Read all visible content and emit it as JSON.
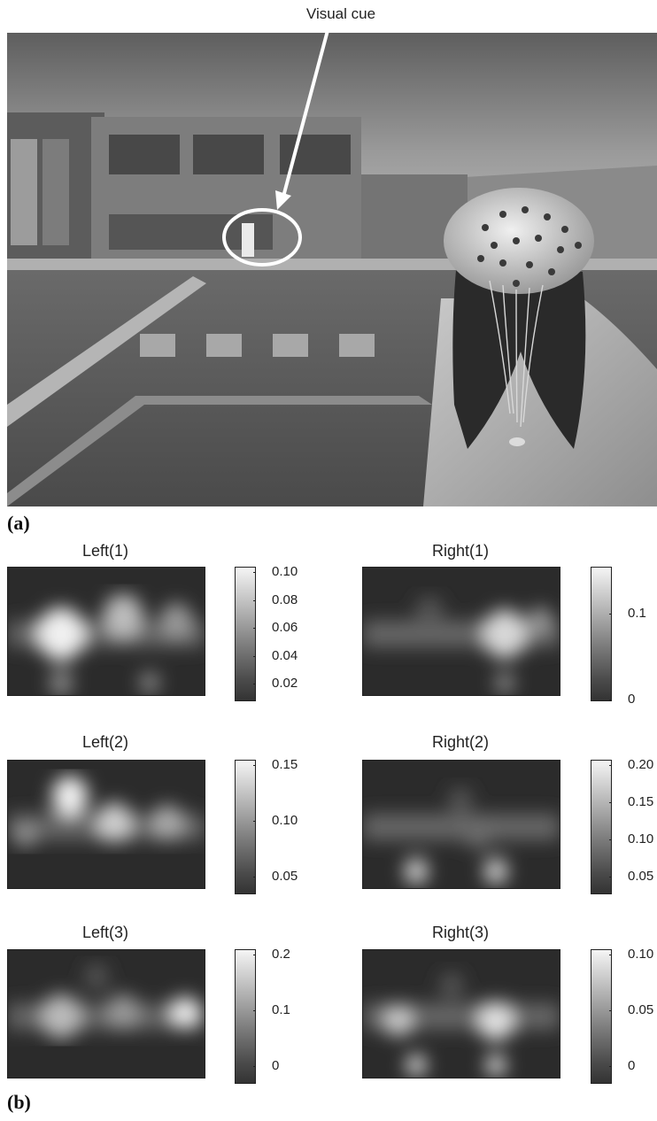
{
  "figure": {
    "cue_label": "Visual cue",
    "panel_a_label": "(a)",
    "panel_b_label": "(b)"
  },
  "maps": [
    {
      "title": "Left(1)",
      "ticks": [
        "0.10",
        "0.08",
        "0.06",
        "0.04",
        "0.02"
      ]
    },
    {
      "title": "Right(1)",
      "ticks": [
        "0.1",
        "0"
      ]
    },
    {
      "title": "Left(2)",
      "ticks": [
        "0.15",
        "0.10",
        "0.05"
      ]
    },
    {
      "title": "Right(2)",
      "ticks": [
        "0.20",
        "0.15",
        "0.10",
        "0.05"
      ]
    },
    {
      "title": "Left(3)",
      "ticks": [
        "0.2",
        "0.1",
        "0"
      ]
    },
    {
      "title": "Right(3)",
      "ticks": [
        "0.10",
        "0.05",
        "0"
      ]
    }
  ]
}
